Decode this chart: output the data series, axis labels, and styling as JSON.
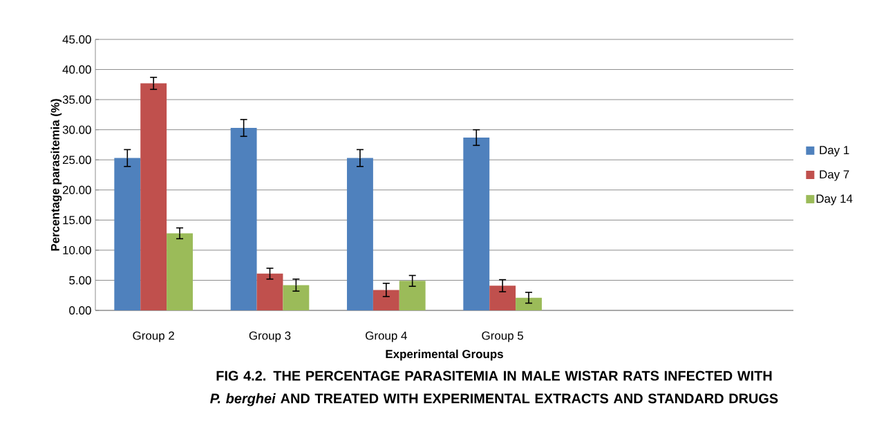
{
  "chart_data": {
    "type": "bar",
    "title": "FIG 4.2. THE PERCENTAGE PARASITEMIA IN MALE WISTAR RATS INFECTED WITH *P. berghei* AND TREATED WITH EXPERIMENTAL EXTRACTS AND STANDARD DRUGS",
    "xlabel": "Experimental Groups",
    "ylabel": "Percentage parasitemia (%)",
    "categories": [
      "Group 2",
      "Group 3",
      "Group 4",
      "Group 5",
      null,
      null
    ],
    "series": [
      {
        "name": "Day 1",
        "color": "#4f81bd",
        "values": [
          25.3,
          30.3,
          25.3,
          28.7,
          null,
          null
        ],
        "errors": [
          1.4,
          1.4,
          1.4,
          1.3,
          null,
          null
        ]
      },
      {
        "name": "Day 7",
        "color": "#c0504d",
        "values": [
          37.7,
          6.1,
          3.4,
          4.1,
          null,
          null
        ],
        "errors": [
          1.0,
          0.9,
          1.1,
          1.0,
          null,
          null
        ]
      },
      {
        "name": "Day 14",
        "color": "#9bbb59",
        "values": [
          12.8,
          4.2,
          4.9,
          2.1,
          null,
          null
        ],
        "errors": [
          0.9,
          1.0,
          0.9,
          0.9,
          null,
          null
        ]
      }
    ],
    "ylim": [
      0,
      45
    ],
    "yticks": [
      {
        "value": 0,
        "label": "0.00"
      },
      {
        "value": 5,
        "label": "5.00"
      },
      {
        "value": 10,
        "label": "10.00"
      },
      {
        "value": 15,
        "label": "15.00"
      },
      {
        "value": 20,
        "label": "20.00"
      },
      {
        "value": 25,
        "label": "25.00"
      },
      {
        "value": 30,
        "label": "30.00"
      },
      {
        "value": 35,
        "label": "35.00"
      },
      {
        "value": 40,
        "label": "40.00"
      },
      {
        "value": 45,
        "label": "45.00"
      }
    ],
    "grid": "y",
    "legend": "right"
  }
}
